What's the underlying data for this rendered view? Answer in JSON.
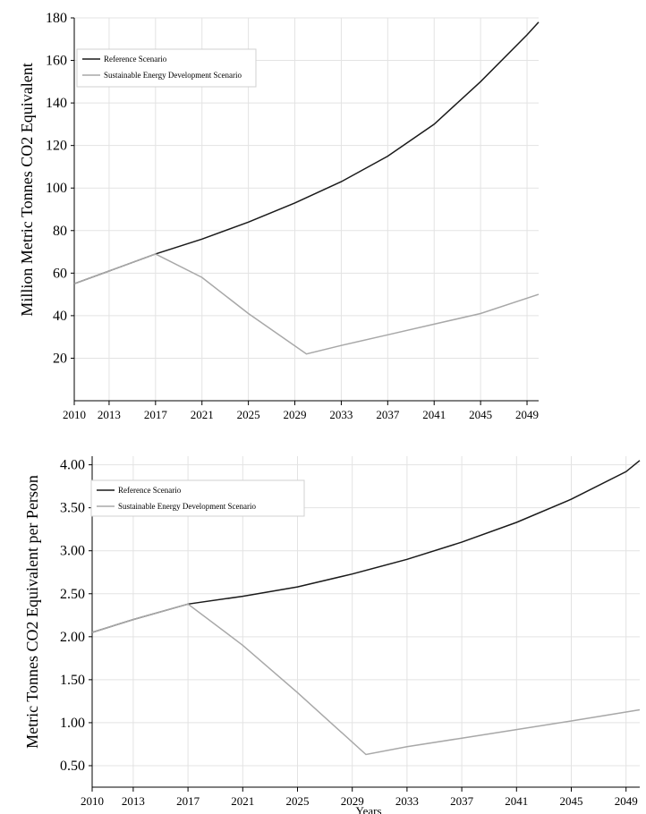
{
  "chart_data": [
    {
      "type": "line",
      "title": "",
      "xlabel": "",
      "ylabel": "Million Metric Tonnes CO2 Equivalent",
      "xlim": [
        2010,
        2050
      ],
      "ylim": [
        0,
        180
      ],
      "x_ticks": [
        "2010",
        "2013",
        "2017",
        "2021",
        "2025",
        "2029",
        "2033",
        "2037",
        "2041",
        "2045",
        "2049"
      ],
      "y_ticks": [
        "20",
        "40",
        "60",
        "80",
        "100",
        "120",
        "140",
        "160",
        "180"
      ],
      "grid": true,
      "legend_position": "top-left",
      "series": [
        {
          "name": "Reference Scenario",
          "color": "#1a1a1a",
          "x": [
            2010,
            2013,
            2017,
            2021,
            2025,
            2029,
            2033,
            2037,
            2041,
            2045,
            2049,
            2050
          ],
          "y": [
            55,
            61,
            69,
            76,
            84,
            93,
            103,
            115,
            130,
            150,
            172,
            178
          ]
        },
        {
          "name": "Sustainable Energy Development Scenario",
          "color": "#a8a8a8",
          "x": [
            2010,
            2013,
            2017,
            2021,
            2025,
            2030,
            2033,
            2037,
            2041,
            2045,
            2050
          ],
          "y": [
            55,
            61,
            69,
            58,
            41,
            22,
            26,
            31,
            36,
            41,
            50
          ]
        }
      ]
    },
    {
      "type": "line",
      "title": "",
      "xlabel": "Years",
      "ylabel": "Metric Tonnes CO2 Equivalent  per Person",
      "xlim": [
        2010,
        2050
      ],
      "ylim": [
        0.25,
        4.1
      ],
      "x_ticks": [
        "2010",
        "2013",
        "2017",
        "2021",
        "2025",
        "2029",
        "2033",
        "2037",
        "2041",
        "2045",
        "2049"
      ],
      "y_ticks": [
        "0.50",
        "1.00",
        "1.50",
        "2.00",
        "2.50",
        "3.00",
        "3.50",
        "4.00"
      ],
      "grid": true,
      "legend_position": "top-left",
      "series": [
        {
          "name": "Reference Scenario",
          "color": "#1a1a1a",
          "x": [
            2010,
            2013,
            2017,
            2021,
            2025,
            2029,
            2033,
            2037,
            2041,
            2045,
            2049,
            2050
          ],
          "y": [
            2.05,
            2.2,
            2.38,
            2.47,
            2.58,
            2.73,
            2.9,
            3.1,
            3.33,
            3.6,
            3.92,
            4.05
          ]
        },
        {
          "name": "Sustainable Energy Development Scenario",
          "color": "#a8a8a8",
          "x": [
            2010,
            2013,
            2017,
            2021,
            2025,
            2030,
            2033,
            2037,
            2041,
            2045,
            2050
          ],
          "y": [
            2.05,
            2.2,
            2.38,
            1.9,
            1.35,
            0.63,
            0.72,
            0.82,
            0.92,
            1.02,
            1.15
          ]
        }
      ]
    }
  ]
}
